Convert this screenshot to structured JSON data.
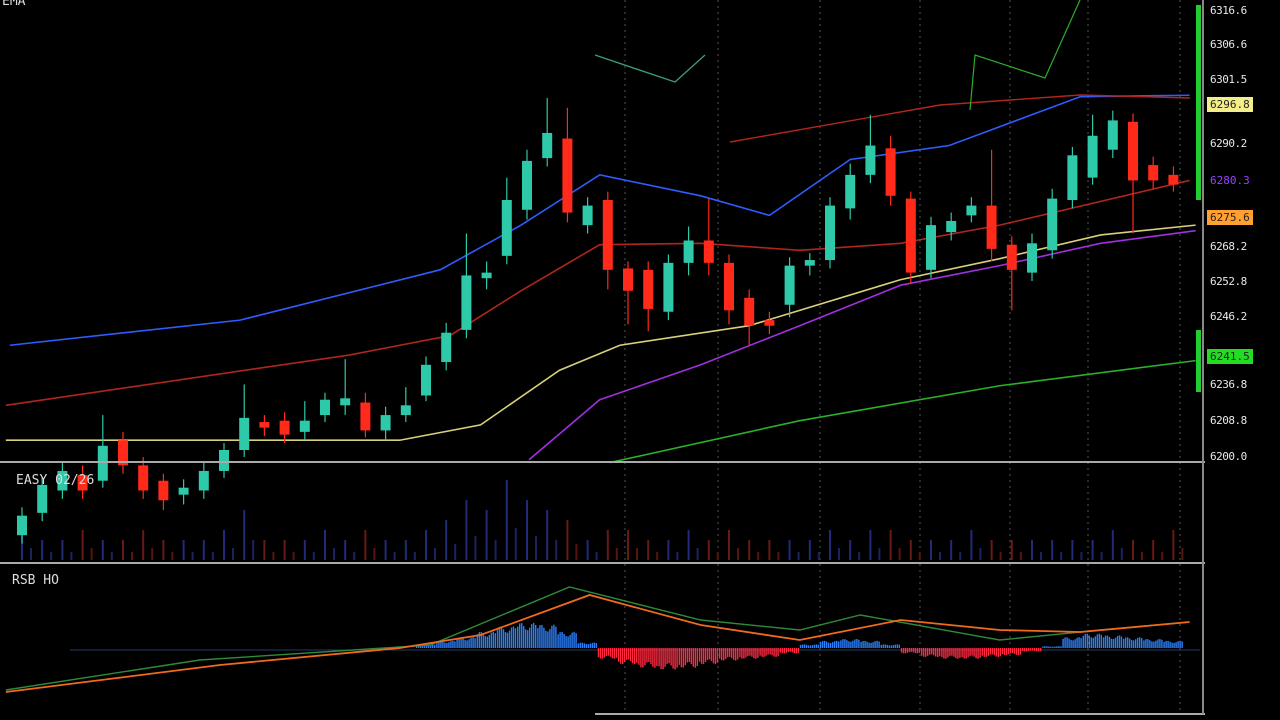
{
  "panels": {
    "price_label": "EMA",
    "volume_label": "EASY 02/26",
    "macd_label": "RSB HO"
  },
  "colors": {
    "up": "#2ec9a8",
    "down": "#ff2a1a",
    "blue_ma": "#2f5cff",
    "red_ma": "#b0261c",
    "yellow_ma": "#d8d07a",
    "purple_ma": "#a030e0",
    "green_ma": "#2ab02a",
    "macd_line": "#f06a1e",
    "signal_line": "#2e8a3a",
    "hist_pos": "#2a7fff",
    "hist_neg": "#ff2a40"
  },
  "price_axis": {
    "ticks": [
      "6316.6",
      "6306.6",
      "6301.5",
      "6290.2",
      "6268.2",
      "6252.8",
      "6246.2",
      "6236.8",
      "6208.8",
      "6200.0"
    ],
    "tags": [
      {
        "text": "6296.8",
        "color": "#f3ee8a"
      },
      {
        "text": "6280.3",
        "color": "#9a40ff"
      },
      {
        "text": "6275.6",
        "color": "#ffa030"
      },
      {
        "text": "6241.5",
        "color": "#22dd22"
      }
    ]
  },
  "chart_data": [
    {
      "type": "candlestick",
      "candles": [
        [
          5944,
          5964,
          5938,
          5958
        ],
        [
          5960,
          5986,
          5954,
          5980
        ],
        [
          5976,
          5996,
          5970,
          5990
        ],
        [
          5987,
          5994,
          5970,
          5976
        ],
        [
          5983,
          6030,
          5978,
          6008
        ],
        [
          6012,
          6018,
          5988,
          5994
        ],
        [
          5994,
          6000,
          5970,
          5976
        ],
        [
          5983,
          5988,
          5962,
          5969
        ],
        [
          5973,
          5984,
          5966,
          5978
        ],
        [
          5976,
          5996,
          5970,
          5990
        ],
        [
          5990,
          6010,
          5985,
          6005
        ],
        [
          6005,
          6052,
          6000,
          6028
        ],
        [
          6025,
          6030,
          6015,
          6021
        ],
        [
          6026,
          6032,
          6010,
          6016
        ],
        [
          6018,
          6040,
          6012,
          6026
        ],
        [
          6030,
          6046,
          6025,
          6041
        ],
        [
          6037,
          6070,
          6030,
          6042
        ],
        [
          6039,
          6046,
          6014,
          6019
        ],
        [
          6019,
          6036,
          6012,
          6030
        ],
        [
          6030,
          6050,
          6025,
          6037
        ],
        [
          6044,
          6072,
          6040,
          6066
        ],
        [
          6068,
          6096,
          6062,
          6089
        ],
        [
          6091,
          6160,
          6085,
          6130
        ],
        [
          6128,
          6140,
          6120,
          6132
        ],
        [
          6144,
          6200,
          6138,
          6184
        ],
        [
          6177,
          6220,
          6170,
          6212
        ],
        [
          6214,
          6257,
          6208,
          6232
        ],
        [
          6228,
          6250,
          6168,
          6175
        ],
        [
          6166,
          6186,
          6160,
          6180
        ],
        [
          6184,
          6190,
          6120,
          6134
        ],
        [
          6135,
          6140,
          6095,
          6119
        ],
        [
          6134,
          6140,
          6090,
          6106
        ],
        [
          6104,
          6145,
          6098,
          6139
        ],
        [
          6139,
          6165,
          6130,
          6155
        ],
        [
          6155,
          6185,
          6130,
          6139
        ],
        [
          6139,
          6145,
          6095,
          6105
        ],
        [
          6114,
          6120,
          6080,
          6094
        ],
        [
          6098,
          6104,
          6088,
          6094
        ],
        [
          6109,
          6143,
          6100,
          6137
        ],
        [
          6137,
          6146,
          6130,
          6141
        ],
        [
          6141,
          6186,
          6135,
          6180
        ],
        [
          6178,
          6210,
          6170,
          6202
        ],
        [
          6202,
          6245,
          6196,
          6223
        ],
        [
          6221,
          6230,
          6180,
          6187
        ],
        [
          6185,
          6190,
          6124,
          6132
        ],
        [
          6134,
          6172,
          6128,
          6166
        ],
        [
          6161,
          6175,
          6155,
          6169
        ],
        [
          6173,
          6186,
          6168,
          6180
        ],
        [
          6180,
          6220,
          6140,
          6149
        ],
        [
          6152,
          6158,
          6105,
          6134
        ],
        [
          6132,
          6160,
          6126,
          6153
        ],
        [
          6148,
          6192,
          6142,
          6185
        ],
        [
          6184,
          6222,
          6178,
          6216
        ],
        [
          6200,
          6245,
          6195,
          6230
        ],
        [
          6220,
          6248,
          6214,
          6241
        ],
        [
          6240,
          6246,
          6160,
          6198
        ],
        [
          6209,
          6215,
          6192,
          6198
        ],
        [
          6202,
          6208,
          6190,
          6195
        ]
      ],
      "candle_fields": [
        "open",
        "high",
        "low",
        "close"
      ],
      "moving_averages": {
        "blue": [
          [
            -0.6,
            6080
          ],
          [
            10.8,
            6098
          ],
          [
            20.7,
            6134
          ],
          [
            24.7,
            6166
          ],
          [
            28.6,
            6202
          ],
          [
            33.6,
            6187
          ],
          [
            37.0,
            6173
          ],
          [
            41.0,
            6213
          ],
          [
            45.9,
            6223
          ],
          [
            52.4,
            6258
          ],
          [
            57.8,
            6259
          ]
        ],
        "red": [
          [
            -0.8,
            6037
          ],
          [
            16.2,
            6073
          ],
          [
            21.2,
            6087
          ],
          [
            24.7,
            6119
          ],
          [
            28.6,
            6152
          ],
          [
            33.6,
            6153
          ],
          [
            38.5,
            6148
          ],
          [
            43.5,
            6153
          ],
          [
            48.4,
            6166
          ],
          [
            57.8,
            6198
          ]
        ],
        "yellow": [
          [
            -0.8,
            6012
          ],
          [
            18.7,
            6012
          ],
          [
            22.7,
            6023
          ],
          [
            26.6,
            6062
          ],
          [
            29.6,
            6080
          ],
          [
            36.0,
            6094
          ],
          [
            43.5,
            6127
          ],
          [
            48.4,
            6142
          ],
          [
            53.4,
            6159
          ],
          [
            58.1,
            6166
          ]
        ],
        "purple": [
          [
            25.1,
            5998
          ],
          [
            28.6,
            6041
          ],
          [
            33.6,
            6066
          ],
          [
            38.5,
            6094
          ],
          [
            43.5,
            6123
          ],
          [
            48.4,
            6137
          ],
          [
            53.4,
            6153
          ],
          [
            58.1,
            6162
          ]
        ],
        "green": [
          [
            29.1,
            5996
          ],
          [
            38.5,
            6026
          ],
          [
            48.4,
            6051
          ],
          [
            58.1,
            6069
          ]
        ]
      }
    },
    {
      "type": "bar",
      "name": "volume",
      "values": [
        3,
        2,
        2,
        3,
        2,
        2,
        3,
        2,
        2,
        2,
        3,
        5,
        2,
        2,
        2,
        3,
        2,
        3,
        2,
        2,
        3,
        4,
        6,
        5,
        8,
        6,
        5,
        4,
        2,
        3,
        3,
        2,
        2,
        3,
        2,
        3,
        2,
        2,
        2,
        2,
        3,
        2,
        3,
        3,
        2,
        2,
        2,
        3,
        2,
        2,
        2,
        2,
        2,
        2,
        3,
        2,
        2,
        3
      ]
    },
    {
      "type": "macd",
      "histogram": [
        0,
        0,
        0,
        0,
        0,
        0,
        0,
        0,
        0,
        0,
        0,
        0,
        0,
        0,
        0,
        0,
        0,
        0,
        0,
        0,
        0.2,
        0.4,
        0.6,
        0.9,
        1.2,
        1.4,
        1.3,
        0.9,
        0.3,
        -0.6,
        -0.9,
        -1.1,
        -1.2,
        -1.1,
        -0.9,
        -0.7,
        -0.6,
        -0.5,
        -0.3,
        0.2,
        0.4,
        0.5,
        0.4,
        0.2,
        -0.3,
        -0.5,
        -0.6,
        -0.6,
        -0.5,
        -0.4,
        -0.2,
        0.1,
        0.6,
        0.8,
        0.7,
        0.6,
        0.5,
        0.4
      ],
      "macd": [
        [
          -0.8,
          -4.4
        ],
        [
          9.8,
          -1.7
        ],
        [
          18.7,
          0
        ],
        [
          22.7,
          1.3
        ],
        [
          28.1,
          5.3
        ],
        [
          33.6,
          2.3
        ],
        [
          38.5,
          0.8
        ],
        [
          43.5,
          2.8
        ],
        [
          48.4,
          1.8
        ],
        [
          52.4,
          1.6
        ],
        [
          57.8,
          2.6
        ]
      ],
      "signal": [
        [
          -0.8,
          -4.2
        ],
        [
          8.8,
          -1.2
        ],
        [
          20.2,
          0.3
        ],
        [
          27.1,
          6.1
        ],
        [
          33.6,
          2.8
        ],
        [
          38.5,
          1.8
        ],
        [
          41.5,
          3.3
        ],
        [
          48.4,
          0.8
        ],
        [
          53.4,
          1.8
        ],
        [
          57.8,
          2.6
        ]
      ]
    }
  ]
}
